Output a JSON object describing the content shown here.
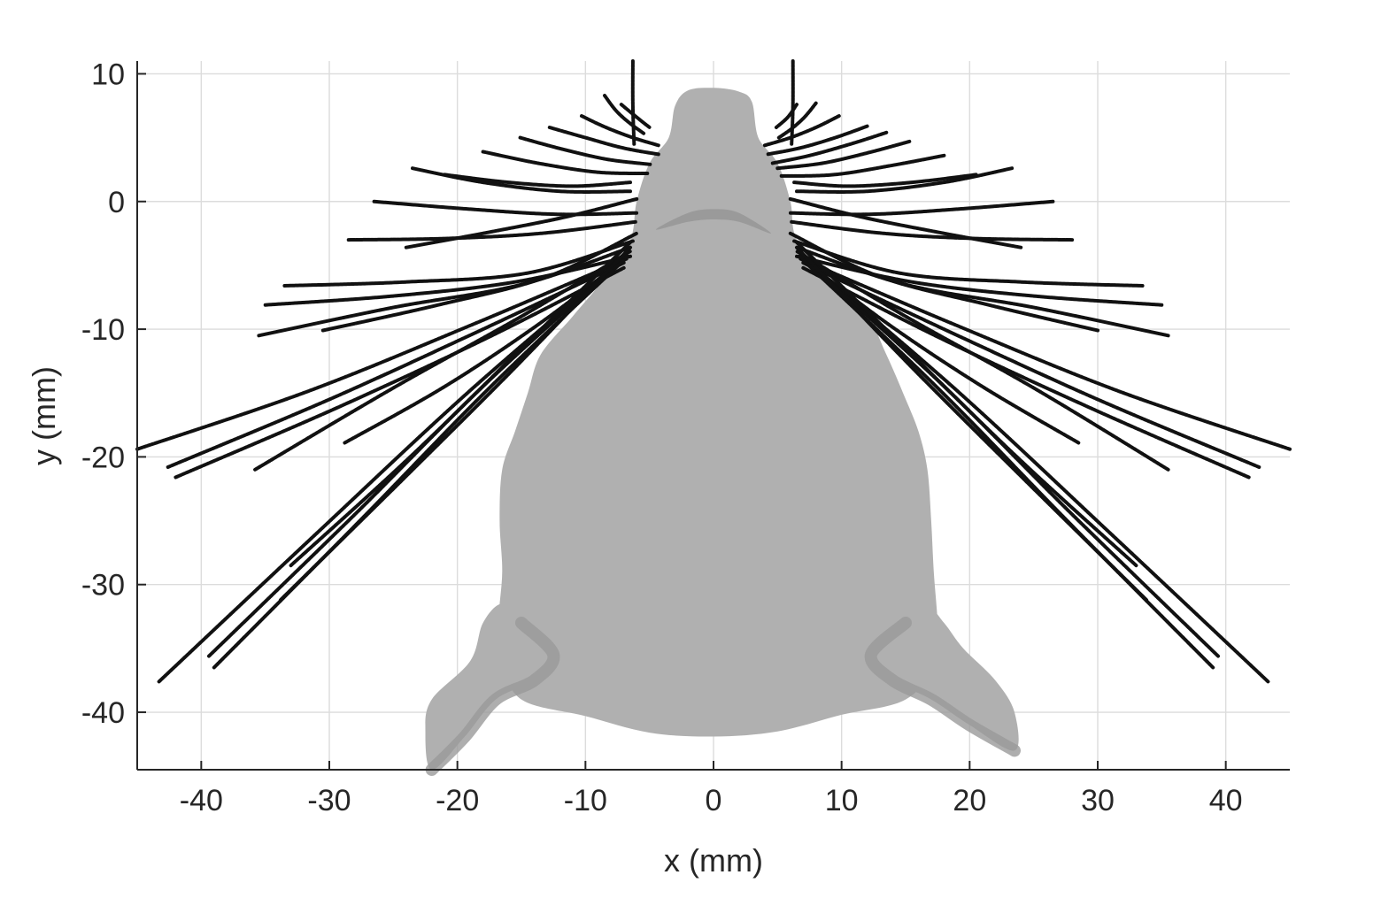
{
  "chart_data": {
    "type": "line",
    "title": "",
    "xlabel": "x (mm)",
    "ylabel": "y (mm)",
    "xlim": [
      -45,
      45
    ],
    "ylim": [
      -44.5,
      11
    ],
    "xticks": [
      -40,
      -30,
      -20,
      -10,
      0,
      10,
      20,
      30,
      40
    ],
    "xtick_labels": [
      "-40",
      "-30",
      "-20",
      "-10",
      "0",
      "10",
      "20",
      "30",
      "40"
    ],
    "yticks": [
      -40,
      -30,
      -20,
      -10,
      0,
      10
    ],
    "ytick_labels": [
      "-40",
      "-30",
      "-20",
      "-10",
      "0",
      "10"
    ],
    "grid": true,
    "legend": "none",
    "colors": {
      "whisker": "#111111",
      "body": "#b0b0b0",
      "fin": "#9a9a9a",
      "axis": "#262626",
      "grid": "#dcdcdc"
    },
    "body_outline": [
      [
        -3,
        7.5
      ],
      [
        -2,
        8.7
      ],
      [
        0,
        8.9
      ],
      [
        2,
        8.6
      ],
      [
        3,
        7.8
      ],
      [
        3.5,
        5
      ],
      [
        5,
        3
      ],
      [
        6,
        0
      ],
      [
        6.5,
        -3
      ],
      [
        9,
        -6
      ],
      [
        12,
        -9
      ],
      [
        13.5,
        -12
      ],
      [
        14.8,
        -15
      ],
      [
        16,
        -18
      ],
      [
        16.7,
        -21
      ],
      [
        17,
        -25
      ],
      [
        17.2,
        -29
      ],
      [
        17.5,
        -33
      ],
      [
        17.5,
        -36
      ],
      [
        15,
        -39
      ],
      [
        10,
        -40.2
      ],
      [
        5,
        -41.5
      ],
      [
        0,
        -41.9
      ],
      [
        -5,
        -41.6
      ],
      [
        -10,
        -40.3
      ],
      [
        -15,
        -39
      ],
      [
        -16.5,
        -36
      ],
      [
        -16.8,
        -33
      ],
      [
        -16.5,
        -29
      ],
      [
        -16.7,
        -25
      ],
      [
        -16.5,
        -21
      ],
      [
        -15.5,
        -18
      ],
      [
        -14.5,
        -15
      ],
      [
        -13.5,
        -12
      ],
      [
        -11,
        -9
      ],
      [
        -8.5,
        -6
      ],
      [
        -6.5,
        -3
      ],
      [
        -6,
        0
      ],
      [
        -5,
        3
      ],
      [
        -3.5,
        5
      ]
    ],
    "fins": [
      [
        [
          -16.5,
          -31.5
        ],
        [
          -15,
          -33
        ],
        [
          -12.5,
          -35.5
        ],
        [
          -14,
          -37.5
        ],
        [
          -17,
          -39
        ],
        [
          -19.5,
          -42
        ],
        [
          -22,
          -44.5
        ],
        [
          -22.5,
          -41.5
        ],
        [
          -22,
          -39
        ],
        [
          -19,
          -36
        ],
        [
          -18,
          -33
        ]
      ],
      [
        [
          16.5,
          -31.5
        ],
        [
          15,
          -33
        ],
        [
          12.3,
          -35.5
        ],
        [
          14,
          -37.5
        ],
        [
          17,
          -39
        ],
        [
          20,
          -41
        ],
        [
          23.5,
          -43
        ],
        [
          23.5,
          -40
        ],
        [
          22,
          -37.5
        ],
        [
          19.5,
          -35
        ],
        [
          18,
          -33
        ]
      ]
    ],
    "mouth": [
      [
        -4.5,
        -2.2
      ],
      [
        -2,
        -0.9
      ],
      [
        0,
        -0.6
      ],
      [
        2,
        -0.9
      ],
      [
        4.5,
        -2.5
      ],
      [
        2,
        -1.6
      ],
      [
        0,
        -1.4
      ],
      [
        -2,
        -1.6
      ]
    ],
    "series": [
      {
        "values": [
          [
            -6.3,
            11
          ],
          [
            -6.3,
            7.5
          ],
          [
            -6.2,
            4.5
          ]
        ]
      },
      {
        "values": [
          [
            -8.5,
            8.3
          ],
          [
            -7.6,
            7.1
          ],
          [
            -6.5,
            6.1
          ],
          [
            -5.4,
            5.3
          ]
        ]
      },
      {
        "values": [
          [
            -7.2,
            7.6
          ],
          [
            -6,
            6.6
          ],
          [
            -5,
            5.8
          ]
        ]
      },
      {
        "values": [
          [
            -10.3,
            6.7
          ],
          [
            -8.4,
            5.8
          ],
          [
            -6.3,
            5
          ],
          [
            -4.3,
            4.4
          ]
        ]
      },
      {
        "values": [
          [
            -12.8,
            5.8
          ],
          [
            -10,
            5
          ],
          [
            -7.1,
            4.2
          ],
          [
            -4.3,
            3.7
          ]
        ]
      },
      {
        "values": [
          [
            -15.1,
            5
          ],
          [
            -11.8,
            4.1
          ],
          [
            -8.3,
            3.3
          ],
          [
            -4.9,
            2.9
          ]
        ]
      },
      {
        "values": [
          [
            -18,
            3.9
          ],
          [
            -13.7,
            3
          ],
          [
            -9.1,
            2.3
          ],
          [
            -5.1,
            2.2
          ]
        ]
      },
      {
        "values": [
          [
            -23.5,
            2.6
          ],
          [
            -18,
            1.5
          ],
          [
            -12,
            0.8
          ],
          [
            -6.5,
            0.8
          ]
        ]
      },
      {
        "values": [
          [
            -21,
            2.1
          ],
          [
            -16,
            1.5
          ],
          [
            -11,
            1.2
          ],
          [
            -6.5,
            1.5
          ]
        ]
      },
      {
        "values": [
          [
            -26.5,
            0
          ],
          [
            -19,
            -0.6
          ],
          [
            -12.2,
            -1
          ],
          [
            -6,
            -0.9
          ]
        ]
      },
      {
        "values": [
          [
            -28.5,
            -3
          ],
          [
            -21,
            -2.9
          ],
          [
            -13.5,
            -2.5
          ],
          [
            -6.1,
            -1.6
          ]
        ]
      },
      {
        "values": [
          [
            -24,
            -3.6
          ],
          [
            -17.5,
            -2.4
          ],
          [
            -11.5,
            -1.2
          ],
          [
            -6,
            0.2
          ]
        ]
      },
      {
        "values": [
          [
            -33.5,
            -6.6
          ],
          [
            -24,
            -6.3
          ],
          [
            -14.5,
            -5.6
          ],
          [
            -6.3,
            -3.1
          ]
        ]
      },
      {
        "values": [
          [
            -35,
            -8.1
          ],
          [
            -25,
            -7.4
          ],
          [
            -15.5,
            -6.3
          ],
          [
            -6.5,
            -4.3
          ]
        ]
      },
      {
        "values": [
          [
            -35.5,
            -10.5
          ],
          [
            -25,
            -8.3
          ],
          [
            -15,
            -6.5
          ],
          [
            -6.5,
            -3.6
          ]
        ]
      },
      {
        "values": [
          [
            -30.5,
            -10.1
          ],
          [
            -21.5,
            -8.1
          ],
          [
            -13,
            -5.9
          ],
          [
            -6,
            -2.5
          ]
        ]
      },
      {
        "values": [
          [
            -45,
            -19.4
          ],
          [
            -31.5,
            -14.8
          ],
          [
            -18.5,
            -9.5
          ],
          [
            -6.8,
            -4.5
          ]
        ]
      },
      {
        "values": [
          [
            -42.6,
            -20.8
          ],
          [
            -30,
            -15.5
          ],
          [
            -18,
            -10
          ],
          [
            -7,
            -4.8
          ]
        ]
      },
      {
        "values": [
          [
            -42,
            -21.6
          ],
          [
            -29.5,
            -16.2
          ],
          [
            -17.5,
            -10.6
          ],
          [
            -7,
            -5.2
          ]
        ]
      },
      {
        "values": [
          [
            -35.8,
            -21
          ],
          [
            -25,
            -14.6
          ],
          [
            -15,
            -9
          ],
          [
            -6.5,
            -3.9
          ]
        ]
      },
      {
        "values": [
          [
            -28.8,
            -18.9
          ],
          [
            -21,
            -14.5
          ],
          [
            -13.5,
            -9.5
          ],
          [
            -6.7,
            -4.3
          ]
        ]
      },
      {
        "values": [
          [
            -43.3,
            -37.6
          ],
          [
            -31,
            -26
          ],
          [
            -19,
            -14.8
          ],
          [
            -7,
            -4.5
          ]
        ]
      },
      {
        "values": [
          [
            -39.4,
            -35.6
          ],
          [
            -28,
            -24.5
          ],
          [
            -17.5,
            -14
          ],
          [
            -6.8,
            -4.3
          ]
        ]
      },
      {
        "values": [
          [
            -39,
            -36.5
          ],
          [
            -28,
            -25.4
          ],
          [
            -17.5,
            -14.6
          ],
          [
            -7,
            -4.6
          ]
        ]
      },
      {
        "values": [
          [
            -33.8,
            -31.2
          ],
          [
            -24.5,
            -22
          ],
          [
            -15.5,
            -13
          ],
          [
            -6.5,
            -3.6
          ]
        ]
      },
      {
        "values": [
          [
            -33,
            -28.5
          ],
          [
            -24,
            -20.3
          ],
          [
            -15.5,
            -12
          ],
          [
            -6.5,
            -3.2
          ]
        ]
      },
      {
        "values": [
          [
            6.2,
            11
          ],
          [
            6.2,
            7.5
          ],
          [
            6.1,
            4.5
          ]
        ]
      },
      {
        "values": [
          [
            8,
            7.7
          ],
          [
            7.1,
            6.6
          ],
          [
            6.1,
            5.7
          ],
          [
            5.1,
            5
          ]
        ]
      },
      {
        "values": [
          [
            6.5,
            7.6
          ],
          [
            5.8,
            6.6
          ],
          [
            4.9,
            5.8
          ]
        ]
      },
      {
        "values": [
          [
            9.8,
            6.7
          ],
          [
            8,
            5.8
          ],
          [
            6,
            5
          ],
          [
            4,
            4.4
          ]
        ]
      },
      {
        "values": [
          [
            12,
            5.9
          ],
          [
            9.5,
            5
          ],
          [
            6.8,
            4.2
          ],
          [
            4.2,
            3.7
          ]
        ]
      },
      {
        "values": [
          [
            13.5,
            5.4
          ],
          [
            10.7,
            4.5
          ],
          [
            7.5,
            3.6
          ],
          [
            4.6,
            3
          ]
        ]
      },
      {
        "values": [
          [
            15.3,
            4.7
          ],
          [
            12,
            3.8
          ],
          [
            8.5,
            3
          ],
          [
            5,
            2.6
          ]
        ]
      },
      {
        "values": [
          [
            18,
            3.6
          ],
          [
            13.8,
            2.8
          ],
          [
            9.4,
            2.1
          ],
          [
            5.3,
            2
          ]
        ]
      },
      {
        "values": [
          [
            23.3,
            2.6
          ],
          [
            18,
            1.5
          ],
          [
            12,
            0.8
          ],
          [
            6.5,
            0.8
          ]
        ]
      },
      {
        "values": [
          [
            20.5,
            2.1
          ],
          [
            15.5,
            1.5
          ],
          [
            10.5,
            1.2
          ],
          [
            6.3,
            1.5
          ]
        ]
      },
      {
        "values": [
          [
            26.5,
            0
          ],
          [
            19,
            -0.6
          ],
          [
            12.2,
            -1
          ],
          [
            6,
            -0.9
          ]
        ]
      },
      {
        "values": [
          [
            28,
            -3
          ],
          [
            20.5,
            -2.9
          ],
          [
            13.3,
            -2.5
          ],
          [
            6.1,
            -1.6
          ]
        ]
      },
      {
        "values": [
          [
            24,
            -3.6
          ],
          [
            17.5,
            -2.4
          ],
          [
            11.5,
            -1.2
          ],
          [
            6,
            0.2
          ]
        ]
      },
      {
        "values": [
          [
            33.5,
            -6.6
          ],
          [
            24,
            -6.3
          ],
          [
            14.5,
            -5.6
          ],
          [
            6.3,
            -3.1
          ]
        ]
      },
      {
        "values": [
          [
            35,
            -8.1
          ],
          [
            25,
            -7.4
          ],
          [
            15.5,
            -6.3
          ],
          [
            6.5,
            -4.3
          ]
        ]
      },
      {
        "values": [
          [
            35.5,
            -10.5
          ],
          [
            25,
            -8.3
          ],
          [
            15,
            -6.5
          ],
          [
            6.5,
            -3.6
          ]
        ]
      },
      {
        "values": [
          [
            30,
            -10.1
          ],
          [
            21.5,
            -8.1
          ],
          [
            13,
            -5.9
          ],
          [
            6,
            -2.5
          ]
        ]
      },
      {
        "values": [
          [
            45,
            -19.4
          ],
          [
            31.5,
            -14.8
          ],
          [
            18.5,
            -9.5
          ],
          [
            6.8,
            -4.5
          ]
        ]
      },
      {
        "values": [
          [
            42.6,
            -20.8
          ],
          [
            30,
            -15.5
          ],
          [
            18,
            -10
          ],
          [
            7,
            -4.8
          ]
        ]
      },
      {
        "values": [
          [
            41.8,
            -21.6
          ],
          [
            29.5,
            -16.2
          ],
          [
            17.5,
            -10.6
          ],
          [
            7,
            -5.2
          ]
        ]
      },
      {
        "values": [
          [
            35.5,
            -21
          ],
          [
            25,
            -14.6
          ],
          [
            15,
            -9
          ],
          [
            6.5,
            -3.9
          ]
        ]
      },
      {
        "values": [
          [
            28.5,
            -18.9
          ],
          [
            21,
            -14.5
          ],
          [
            13.5,
            -9.5
          ],
          [
            6.7,
            -4.3
          ]
        ]
      },
      {
        "values": [
          [
            43.3,
            -37.6
          ],
          [
            31,
            -26
          ],
          [
            19,
            -14.8
          ],
          [
            7,
            -4.5
          ]
        ]
      },
      {
        "values": [
          [
            39.4,
            -35.6
          ],
          [
            28,
            -24.5
          ],
          [
            17.5,
            -14
          ],
          [
            6.8,
            -4.3
          ]
        ]
      },
      {
        "values": [
          [
            39,
            -36.5
          ],
          [
            28,
            -25.4
          ],
          [
            17.5,
            -14.6
          ],
          [
            7,
            -4.6
          ]
        ]
      },
      {
        "values": [
          [
            33.8,
            -31.2
          ],
          [
            24.5,
            -22
          ],
          [
            15.5,
            -13
          ],
          [
            6.5,
            -3.6
          ]
        ]
      },
      {
        "values": [
          [
            33,
            -28.5
          ],
          [
            24,
            -20.3
          ],
          [
            15.5,
            -12
          ],
          [
            6.5,
            -3.2
          ]
        ]
      }
    ]
  }
}
